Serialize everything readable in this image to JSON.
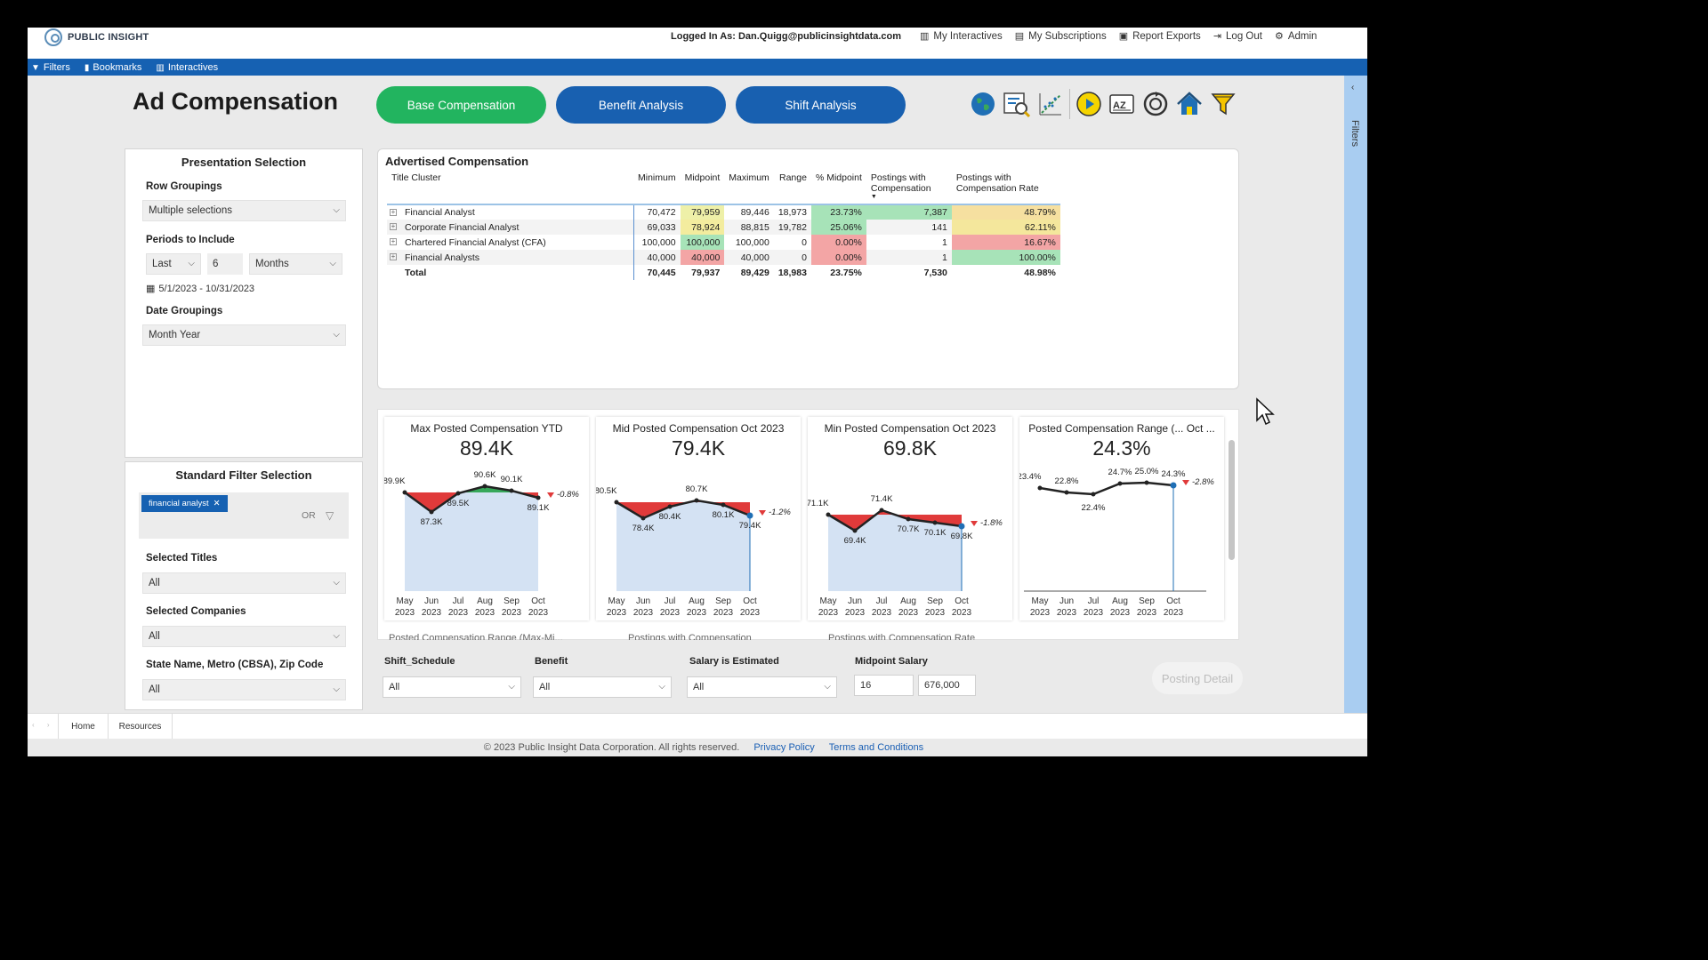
{
  "header": {
    "logo_text": "PUBLIC INSIGHT",
    "logged_in": "Logged In As: Dan.Quigg@publicinsightdata.com",
    "links": [
      {
        "label": "My Interactives",
        "icon": "bar-chart-icon"
      },
      {
        "label": "My Subscriptions",
        "icon": "clipboard-icon"
      },
      {
        "label": "Report Exports",
        "icon": "export-icon"
      },
      {
        "label": "Log Out",
        "icon": "logout-icon"
      },
      {
        "label": "Admin",
        "icon": "gears-icon"
      }
    ]
  },
  "navbar": {
    "filters": "Filters",
    "bookmarks": "Bookmarks",
    "interactives": "Interactives"
  },
  "page": {
    "title": "Ad Compensation",
    "tabs": [
      "Base Compensation",
      "Benefit Analysis",
      "Shift Analysis"
    ],
    "active_tab": "Base Compensation",
    "right_pane_label": "Filters"
  },
  "presentation": {
    "title": "Presentation Selection",
    "row_groupings_label": "Row Groupings",
    "row_groupings_value": "Multiple selections",
    "periods_label": "Periods to Include",
    "period_mode": "Last",
    "period_count": "6",
    "period_unit": "Months",
    "date_range": "5/1/2023 - 10/31/2023",
    "date_groupings_label": "Date Groupings",
    "date_groupings_value": "Month Year"
  },
  "standard_filter": {
    "title": "Standard Filter Selection",
    "chip": "financial analyst",
    "or_label": "OR",
    "selected_titles_label": "Selected Titles",
    "selected_titles_value": "All",
    "selected_companies_label": "Selected Companies",
    "selected_companies_value": "All",
    "geo_label": "State Name, Metro (CBSA), Zip Code",
    "geo_value": "All"
  },
  "advertised": {
    "title": "Advertised Compensation",
    "columns": [
      "Title Cluster",
      "Minimum",
      "Midpoint",
      "Maximum",
      "Range",
      "% Midpoint",
      "Postings with Compensation",
      "Postings with Compensation Rate"
    ],
    "rows": [
      {
        "title": "Financial Analyst",
        "min": "70,472",
        "mid": "79,959",
        "max": "89,446",
        "range": "18,973",
        "pct_mid": "23.73%",
        "postings": "7,387",
        "rate": "48.79%"
      },
      {
        "title": "Corporate Financial Analyst",
        "min": "69,033",
        "mid": "78,924",
        "max": "88,815",
        "range": "19,782",
        "pct_mid": "25.06%",
        "postings": "141",
        "rate": "62.11%"
      },
      {
        "title": "Chartered Financial Analyst (CFA)",
        "min": "100,000",
        "mid": "100,000",
        "max": "100,000",
        "range": "0",
        "pct_mid": "0.00%",
        "postings": "1",
        "rate": "16.67%"
      },
      {
        "title": "Financial Analysts",
        "min": "40,000",
        "mid": "40,000",
        "max": "40,000",
        "range": "0",
        "pct_mid": "0.00%",
        "postings": "1",
        "rate": "100.00%"
      }
    ],
    "total": {
      "title": "Total",
      "min": "70,445",
      "mid": "79,937",
      "max": "89,429",
      "range": "18,983",
      "pct_mid": "23.75%",
      "postings": "7,530",
      "rate": "48.98%"
    },
    "colors": {
      "mid": [
        "#eef0a8",
        "#f3ec9e",
        "#a7e3b8",
        "#f3a5a5"
      ],
      "pct": [
        "#a7e3b8",
        "#a7e3b8",
        "#f3a5a5",
        "#f3a5a5"
      ],
      "postings": [
        "#a7e3b8",
        "#ffffff",
        "#ffffff",
        "#ffffff"
      ],
      "rate": [
        "#f6e0a0",
        "#f4e79c",
        "#f3a5a5",
        "#a7e3b8"
      ]
    }
  },
  "kpis": [
    {
      "title": "Max Posted Compensation YTD",
      "value": "89.4K",
      "labels": [
        "89.9K",
        "87.3K",
        "89.5K",
        "90.6K",
        "90.1K",
        "89.1K"
      ],
      "delta": "-0.8%"
    },
    {
      "title": "Mid Posted Compensation Oct 2023",
      "value": "79.4K",
      "labels": [
        "80.5K",
        "78.4K",
        "80.4K",
        "80.7K",
        "80.1K",
        "79.4K"
      ],
      "delta": "-1.2%"
    },
    {
      "title": "Min Posted Compensation Oct 2023",
      "value": "69.8K",
      "labels": [
        "71.1K",
        "69.4K",
        "71.4K",
        "70.7K",
        "70.1K",
        "69.8K"
      ],
      "delta": "-1.8%"
    },
    {
      "title": "Posted Compensation Range (... Oct ...",
      "value": "24.3%",
      "labels": [
        "23.4%",
        "22.8%",
        "22.4%",
        "24.7%",
        "25.0%",
        "24.3%"
      ],
      "delta": "-2.8%"
    }
  ],
  "kpi_months": [
    [
      "May",
      "2023"
    ],
    [
      "Jun",
      "2023"
    ],
    [
      "Jul",
      "2023"
    ],
    [
      "Aug",
      "2023"
    ],
    [
      "Sep",
      "2023"
    ],
    [
      "Oct",
      "2023"
    ]
  ],
  "peek_titles": [
    "Posted Compensation Range (Max-Mi...",
    "Postings with Compensation",
    "Postings with Compensation Rate"
  ],
  "bottom_filters": {
    "shift_label": "Shift_Schedule",
    "shift_value": "All",
    "benefit_label": "Benefit",
    "benefit_value": "All",
    "salary_est_label": "Salary is Estimated",
    "salary_est_value": "All",
    "midpoint_label": "Midpoint Salary",
    "midpoint_min": "16",
    "midpoint_max": "676,000"
  },
  "posting_detail": "Posting Detail",
  "bottom_tabs": [
    "Home",
    "Resources"
  ],
  "footer": {
    "copyright": "© 2023 Public Insight Data Corporation. All rights reserved.",
    "privacy": "Privacy Policy",
    "terms": "Terms and Conditions"
  }
}
